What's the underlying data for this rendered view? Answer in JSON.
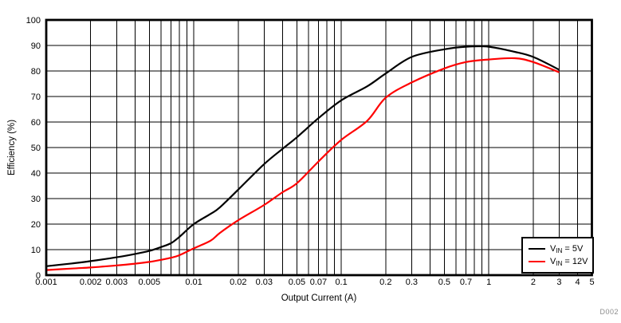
{
  "chart_data": {
    "type": "line",
    "title": "",
    "xlabel": "Output Current (A)",
    "ylabel": "Efficiency (%)",
    "x_scale": "log",
    "xlim": [
      0.001,
      5
    ],
    "ylim": [
      0,
      100
    ],
    "grid": "black minor log grid on x, major grid every 10 on y",
    "legend_position": "bottom-right",
    "watermark": "D002",
    "x_tick_labels": [
      "0.001",
      "0.002",
      "0.003",
      "0.005",
      "0.01",
      "0.02",
      "0.03",
      "0.05",
      "0.07",
      "0.1",
      "0.2",
      "0.3",
      "0.5",
      "0.7",
      "1",
      "2",
      "3",
      "4",
      "5"
    ],
    "y_ticks": [
      0,
      10,
      20,
      30,
      40,
      50,
      60,
      70,
      80,
      90,
      100
    ],
    "series": [
      {
        "name": "VIN = 5V",
        "color": "#000000",
        "x": [
          0.001,
          0.0015,
          0.002,
          0.003,
          0.004,
          0.005,
          0.006,
          0.007,
          0.008,
          0.01,
          0.013,
          0.015,
          0.02,
          0.03,
          0.04,
          0.05,
          0.07,
          0.1,
          0.15,
          0.2,
          0.3,
          0.5,
          0.7,
          1,
          1.5,
          2,
          3
        ],
        "y": [
          3.5,
          4.6,
          5.5,
          7,
          8.3,
          9.5,
          11,
          12.5,
          15,
          20,
          24,
          26.5,
          33.5,
          43.5,
          49.5,
          54,
          61.5,
          68.5,
          74,
          79,
          85.5,
          88.5,
          89.5,
          89.5,
          87.5,
          85.5,
          80.5
        ]
      },
      {
        "name": "VIN = 12V",
        "color": "#ff0000",
        "x": [
          0.001,
          0.0015,
          0.002,
          0.003,
          0.004,
          0.005,
          0.006,
          0.007,
          0.008,
          0.01,
          0.013,
          0.015,
          0.02,
          0.03,
          0.04,
          0.05,
          0.07,
          0.1,
          0.15,
          0.2,
          0.3,
          0.5,
          0.7,
          1,
          1.5,
          2,
          3
        ],
        "y": [
          2,
          2.6,
          3,
          3.8,
          4.5,
          5.2,
          6,
          6.8,
          7.8,
          10.5,
          13.5,
          16.5,
          21.5,
          27.5,
          32.5,
          36,
          44.5,
          53,
          60.5,
          69.5,
          75.5,
          81,
          83.5,
          84.5,
          85,
          83.5,
          79.5
        ]
      }
    ]
  },
  "legend": {
    "items": [
      {
        "base": "V",
        "sub": "IN",
        "rest": " = 5V"
      },
      {
        "base": "V",
        "sub": "IN",
        "rest": " = 12V"
      }
    ]
  }
}
